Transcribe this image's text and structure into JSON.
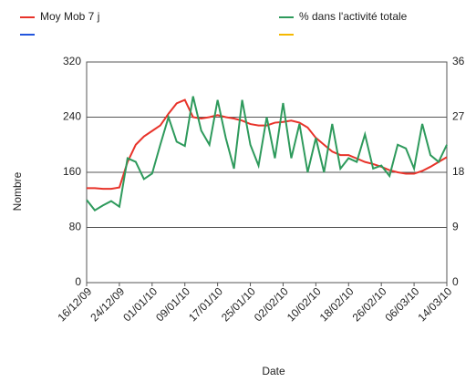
{
  "chart_data": {
    "type": "line",
    "x_label": "Date",
    "y_label": "Nombre",
    "categories": [
      "16/12/09",
      null,
      null,
      null,
      "24/12/09",
      null,
      null,
      null,
      "01/01/10",
      null,
      null,
      null,
      "09/01/10",
      null,
      null,
      null,
      "17/01/10",
      null,
      null,
      null,
      "25/01/10",
      null,
      null,
      null,
      "02/02/10",
      null,
      null,
      null,
      "10/02/10",
      null,
      null,
      null,
      "18/02/10",
      null,
      null,
      null,
      "26/02/10",
      null,
      null,
      null,
      "06/03/10",
      null,
      null,
      null,
      "14/03/10"
    ],
    "ylim": [
      0,
      320
    ],
    "yticks": [
      0,
      80,
      160,
      240,
      320
    ],
    "y2lim": [
      0,
      36
    ],
    "y2ticks": [
      0,
      9,
      18,
      27,
      36
    ],
    "grid": true,
    "series": [
      {
        "name": "Moy Mob 7 j",
        "color": "#e8332a",
        "values": [
          137,
          137,
          136,
          136,
          138,
          175,
          200,
          212,
          220,
          228,
          245,
          260,
          265,
          240,
          238,
          240,
          243,
          240,
          238,
          235,
          230,
          228,
          228,
          232,
          233,
          235,
          232,
          225,
          210,
          200,
          190,
          185,
          185,
          180,
          175,
          172,
          168,
          163,
          160,
          158,
          158,
          162,
          168,
          175,
          182
        ]
      },
      {
        "name": "% dans l'activité totale",
        "color": "#2e9a5c",
        "axis": "y2",
        "values": [
          13.5,
          11.8,
          12.6,
          13.3,
          12.4,
          20.3,
          19.7,
          16.9,
          17.8,
          22.5,
          27,
          23,
          22.3,
          30.4,
          24.8,
          22.5,
          29.8,
          23.6,
          18.6,
          29.8,
          22.5,
          19.1,
          27,
          20.3,
          29.3,
          20.3,
          25.9,
          18,
          23.6,
          18,
          25.9,
          18.6,
          20.3,
          19.7,
          24.2,
          18.6,
          19.1,
          17.4,
          22.5,
          21.9,
          18.6,
          25.9,
          20.8,
          19.7,
          22.5
        ]
      }
    ]
  }
}
